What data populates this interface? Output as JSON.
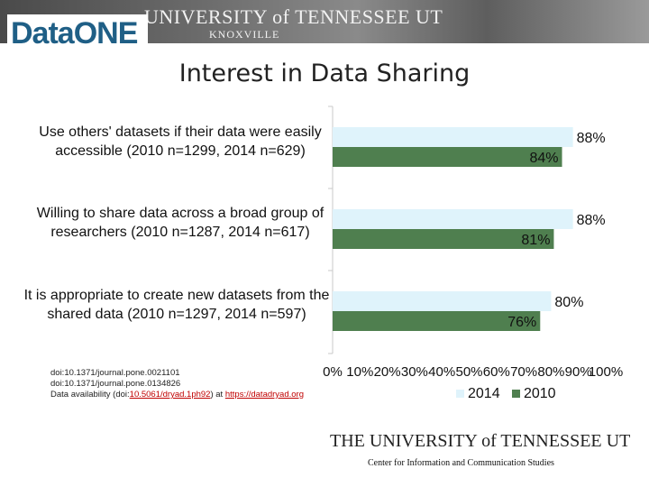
{
  "header": {
    "university": "UNIVERSITY of TENNESSEE UT",
    "campus": "KNOXVILLE",
    "logo": "DataONE"
  },
  "chart_data": {
    "type": "bar",
    "orientation": "horizontal",
    "title": "Interest in Data Sharing",
    "categories": [
      "Use others' datasets if their data were easily accessible (2010 n=1299, 2014 n=629)",
      "Willing to share data across a broad group of researchers (2010 n=1287, 2014 n=617)",
      "It is appropriate to create new datasets from the shared data (2010 n=1297, 2014 n=597)"
    ],
    "series": [
      {
        "name": "2014",
        "color": "#dff3fb",
        "values": [
          88,
          88,
          80
        ],
        "labels": [
          "88%",
          "88%",
          "80%"
        ]
      },
      {
        "name": "2010",
        "color": "#4f7f4f",
        "values": [
          84,
          81,
          76
        ],
        "labels": [
          "84%",
          "81%",
          "76%"
        ]
      }
    ],
    "xlim": [
      0,
      100
    ],
    "xticks": [
      "0%",
      "10%",
      "20%",
      "30%",
      "40%",
      "50%",
      "60%",
      "70%",
      "80%",
      "90%",
      "100%"
    ],
    "legend_position": "bottom",
    "grid": false
  },
  "citations": [
    "doi:10.1371/journal.pone.0021101",
    "doi:10.1371/journal.pone.0134826"
  ],
  "availability": {
    "prefix": "Data availability (doi:",
    "doi": "10.5061/dryad.1ph92",
    "middle": ") at ",
    "url": "https://datadryad.org"
  },
  "footer": {
    "university": "THE UNIVERSITY of TENNESSEE UT",
    "center": "Center for Information and Communication Studies"
  }
}
